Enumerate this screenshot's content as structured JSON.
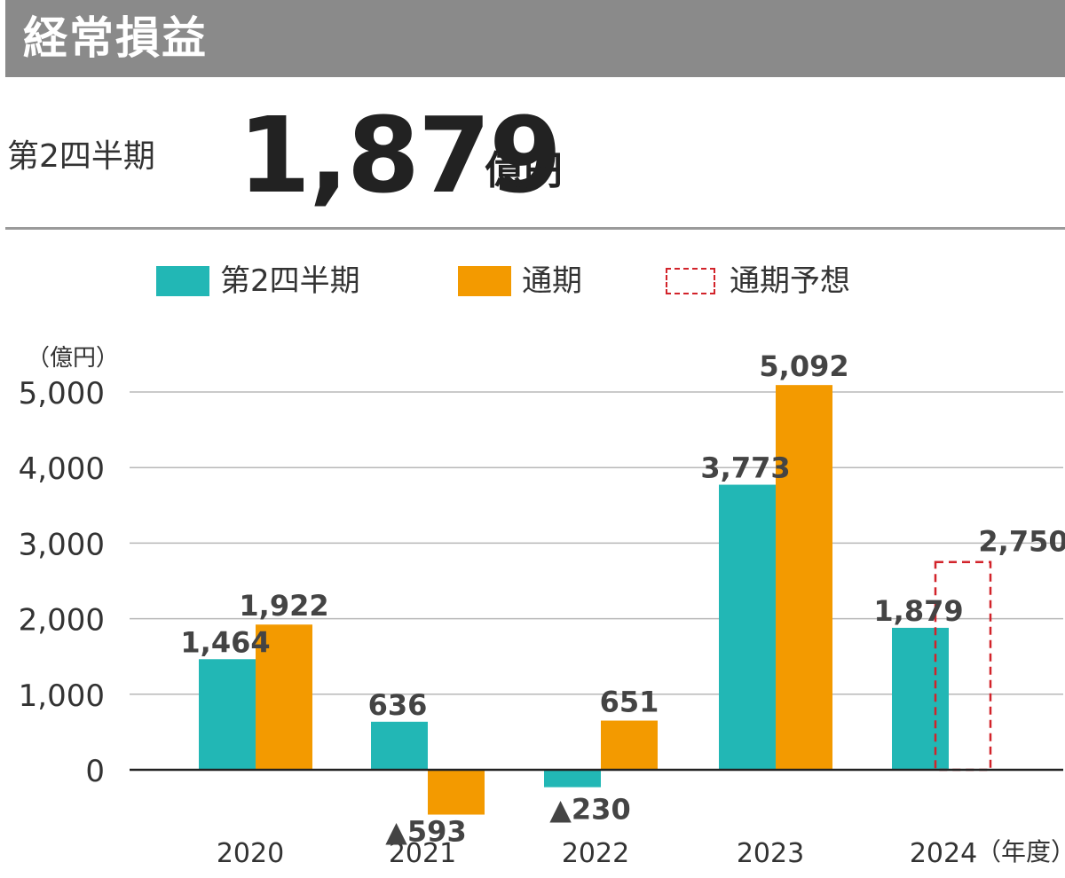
{
  "header": {
    "title": "経常損益",
    "period_label": "第2四半期",
    "value": "1,879",
    "unit": "億円"
  },
  "colors": {
    "q2": "#22b7b5",
    "full_year": "#f39a00",
    "forecast": "#d2232a",
    "title_bar": "#8a8a8a"
  },
  "chart_data": {
    "type": "bar",
    "unit_label": "（億円）",
    "x_unit_label": "（年度）",
    "categories": [
      "2020",
      "2021",
      "2022",
      "2023",
      "2024"
    ],
    "series": [
      {
        "name": "第2四半期",
        "values": [
          1464,
          636,
          -230,
          3773,
          1879
        ],
        "labels": [
          "1,464",
          "636",
          "▲230",
          "3,773",
          "1,879"
        ]
      },
      {
        "name": "通期",
        "values": [
          1922,
          -593,
          651,
          5092,
          null
        ],
        "labels": [
          "1,922",
          "▲593",
          "651",
          "5,092",
          ""
        ]
      },
      {
        "name": "通期予想",
        "values": [
          null,
          null,
          null,
          null,
          2750
        ],
        "labels": [
          "",
          "",
          "",
          "",
          "2,750"
        ]
      }
    ],
    "yticks": [
      "0",
      "1,000",
      "2,000",
      "3,000",
      "4,000",
      "5,000"
    ],
    "ylim": [
      -300,
      5300
    ],
    "grid": true,
    "legend": "top"
  }
}
